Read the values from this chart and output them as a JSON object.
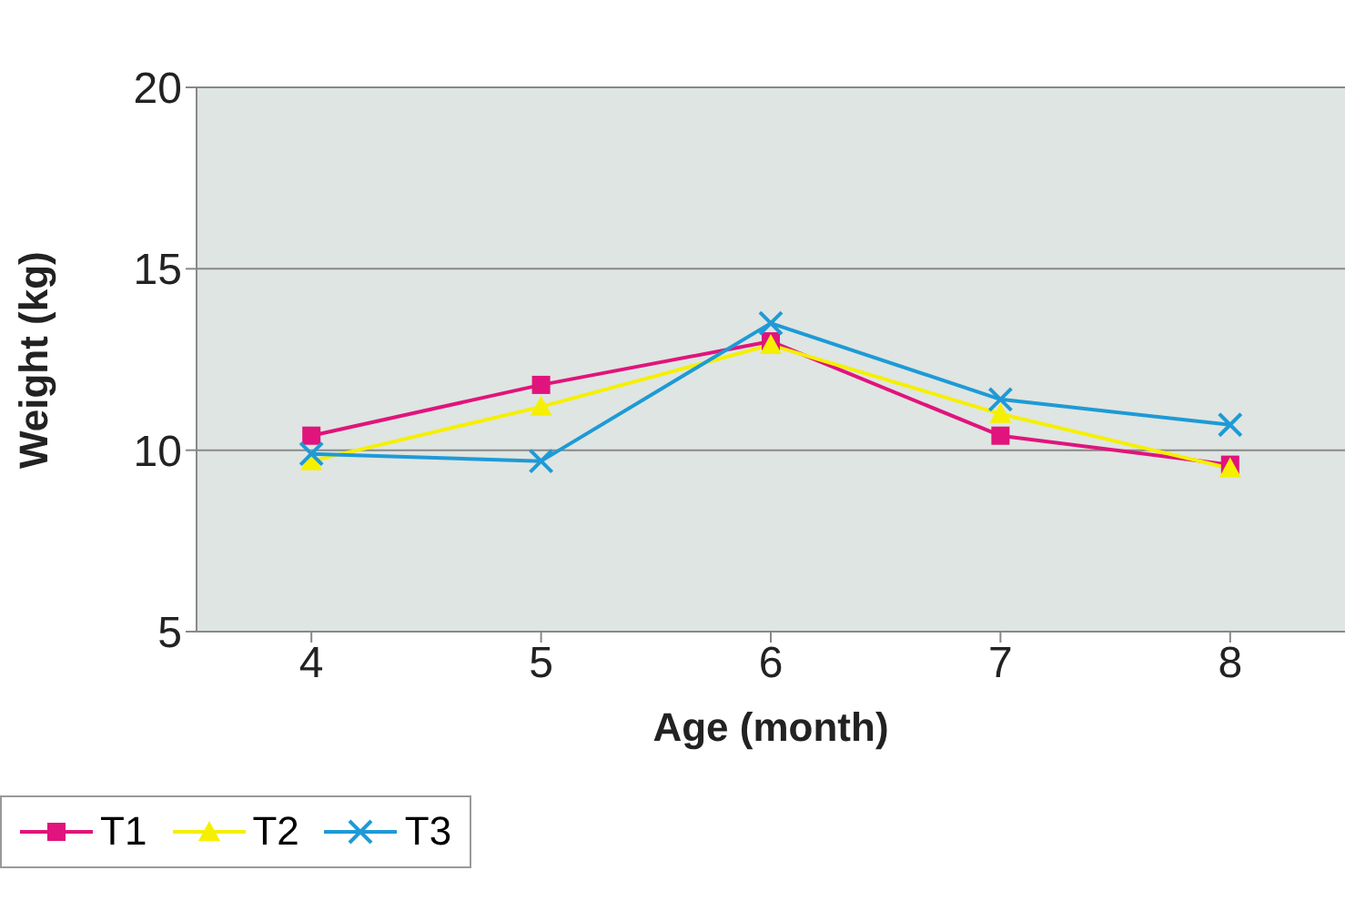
{
  "chart_data": {
    "type": "line",
    "xlabel": "Age (month)",
    "ylabel": "Weight (kg)",
    "categories": [
      "4",
      "5",
      "6",
      "7",
      "8"
    ],
    "series": [
      {
        "name": "T1",
        "color": "#e0147c",
        "marker": "square",
        "values": [
          10.4,
          11.8,
          13.0,
          10.4,
          9.6
        ]
      },
      {
        "name": "T2",
        "color": "#f5f000",
        "marker": "triangle",
        "values": [
          9.7,
          11.2,
          12.9,
          11.0,
          9.5
        ]
      },
      {
        "name": "T3",
        "color": "#1e9ad6",
        "marker": "cross",
        "values": [
          9.9,
          9.7,
          13.5,
          11.4,
          10.7
        ]
      }
    ],
    "ylim": [
      5,
      20
    ],
    "yticks": [
      5,
      10,
      15,
      20
    ],
    "grid": "y",
    "legend": "bottom left"
  }
}
